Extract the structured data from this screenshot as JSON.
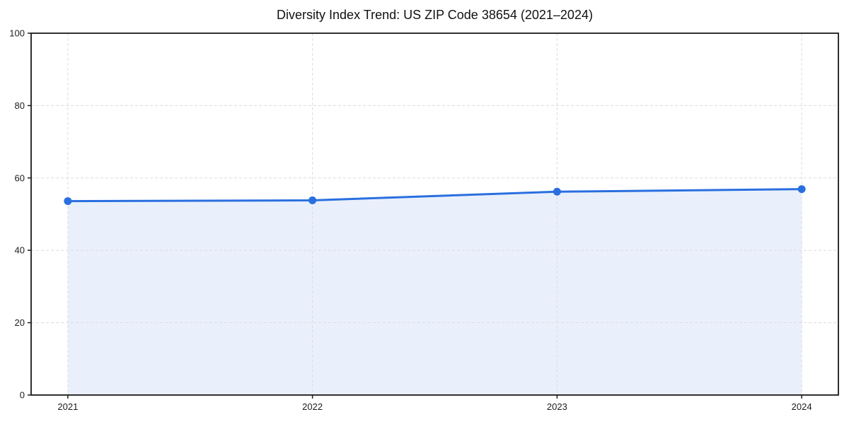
{
  "chart_data": {
    "type": "area",
    "title": "Diversity Index Trend: US ZIP Code 38654 (2021–2024)",
    "x": [
      2021,
      2022,
      2023,
      2024
    ],
    "values": [
      53.6,
      53.8,
      56.2,
      56.9
    ],
    "xlabel": "",
    "ylabel": "",
    "xticks": [
      2021,
      2022,
      2023,
      2024
    ],
    "yticks": [
      0,
      20,
      40,
      60,
      80,
      100
    ],
    "xlim": [
      2020.85,
      2024.15
    ],
    "ylim": [
      0,
      100
    ],
    "grid": true,
    "grid_style": "dashed",
    "legend": "none",
    "marker": "circle",
    "colors": {
      "line": "#2a6fe0",
      "marker": "#2a6fe0",
      "fill": "#e9f0fc",
      "grid": "#dcdcdc",
      "axis": "#1a1a1a",
      "tick_label": "#1c1c1c",
      "title": "#111111",
      "background": "#ffffff"
    }
  }
}
